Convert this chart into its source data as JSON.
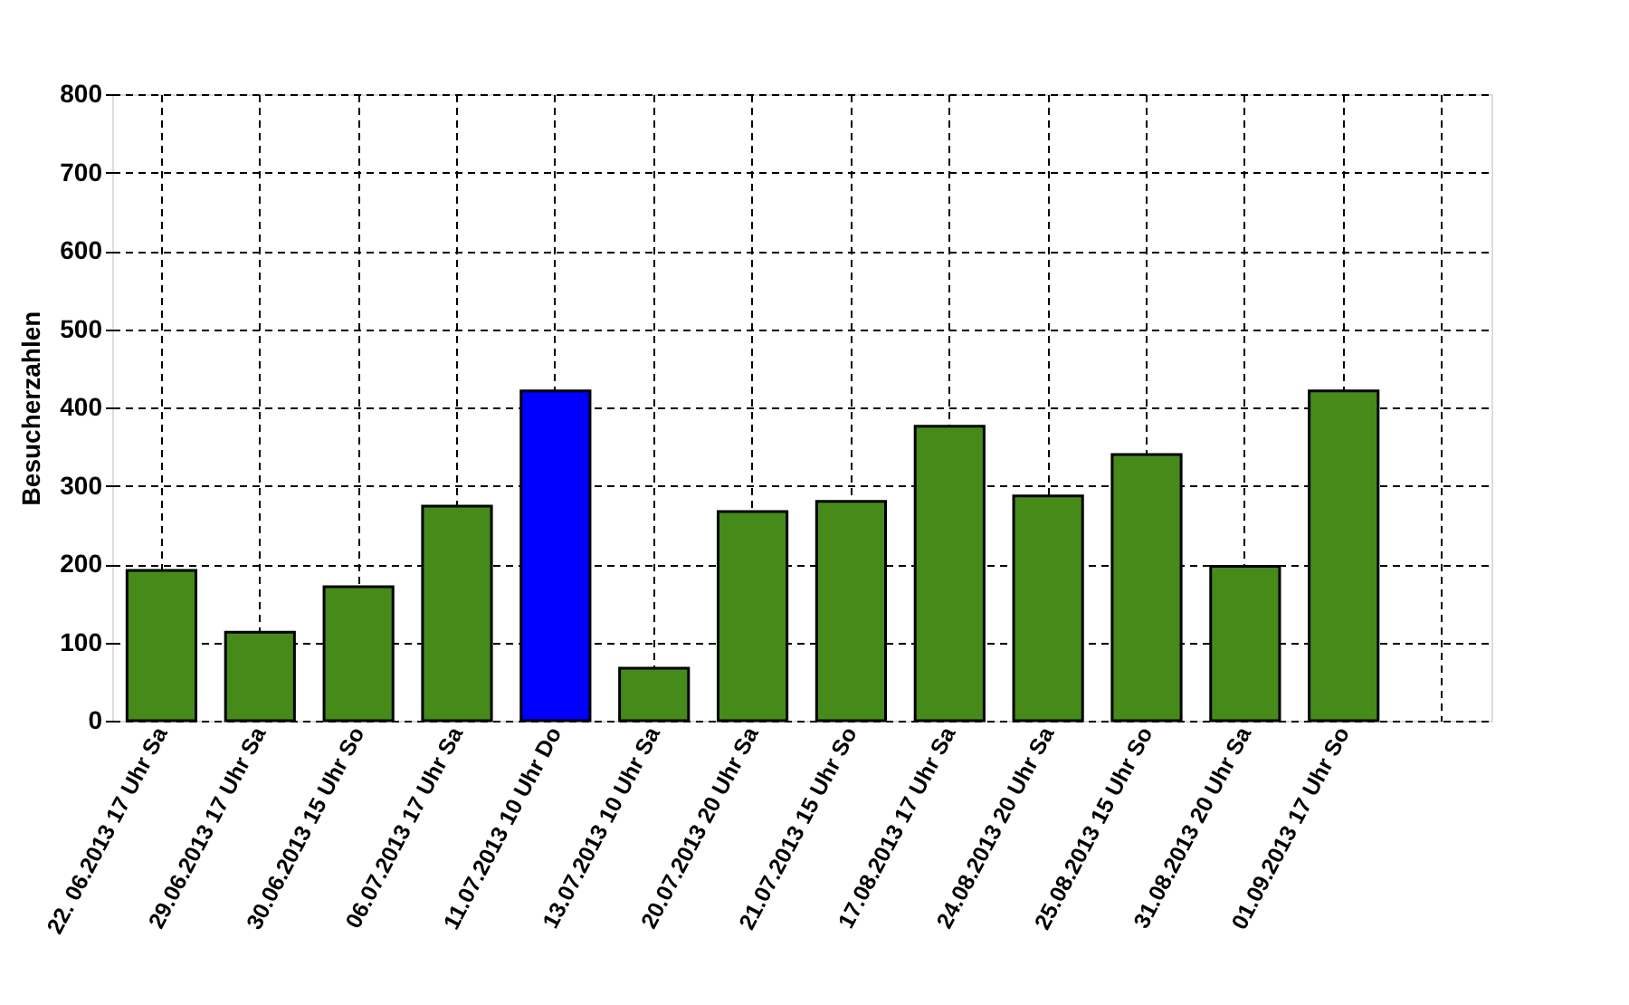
{
  "chart_data": {
    "type": "bar",
    "ylabel": "Besucherzahlen",
    "categories": [
      "22. 06.2013 17 Uhr Sa",
      "29.06.2013 17 Uhr Sa",
      "30.06.2013 15 Uhr So",
      "06.07.2013 17 Uhr Sa",
      "11.07.2013 10 Uhr Do",
      "13.07.2013 10 Uhr Sa",
      "20.07.2013 20 Uhr Sa",
      "21.07.2013 15 Uhr So",
      "17.08.2013 17 Uhr Sa",
      "24.08.2013 20 Uhr Sa",
      "25.08.2013 15 Uhr So",
      "31.08.2013 20 Uhr Sa",
      "01.09.2013 17 Uhr So",
      null
    ],
    "values": [
      192,
      113,
      171,
      274,
      421,
      67,
      267,
      280,
      376,
      287,
      340,
      197,
      421,
      null
    ],
    "colors": [
      "#468a1a",
      "#468a1a",
      "#468a1a",
      "#468a1a",
      "#0000ff",
      "#468a1a",
      "#468a1a",
      "#468a1a",
      "#468a1a",
      "#468a1a",
      "#468a1a",
      "#468a1a",
      "#468a1a",
      "#468a1a"
    ],
    "ylim": [
      0,
      800
    ],
    "yticks": [
      0,
      100,
      200,
      300,
      400,
      500,
      600,
      700,
      800
    ],
    "grid": true
  }
}
